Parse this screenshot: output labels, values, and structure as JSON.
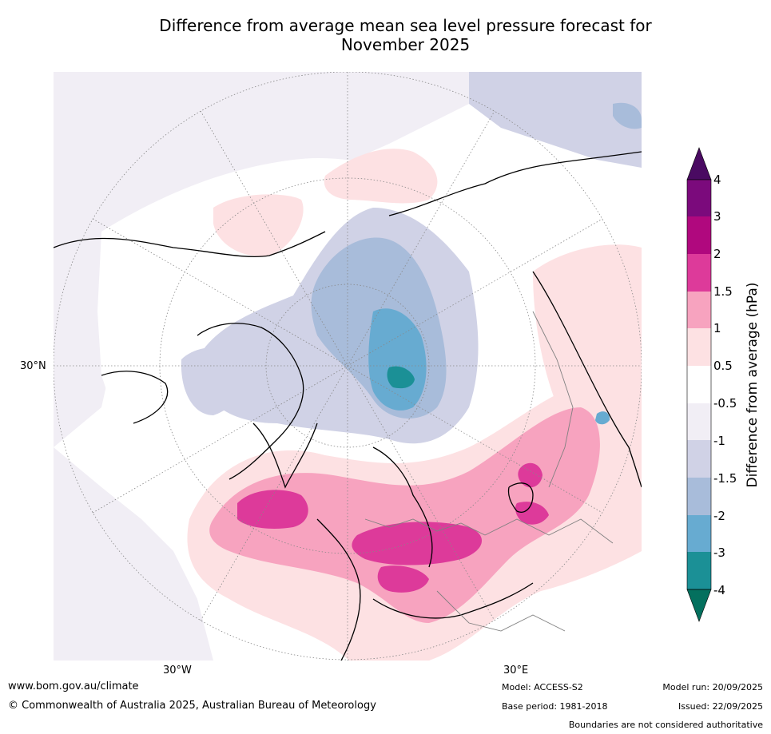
{
  "title_line1": "Difference from average mean sea level pressure forecast for",
  "title_line2": "November 2025",
  "map": {
    "lat_label": "30°N",
    "lon_label_west": "30°W",
    "lon_label_east": "30°E"
  },
  "colorbar": {
    "title": "Difference from average (hPa)",
    "ticks": [
      "4",
      "3",
      "2",
      "1.5",
      "1",
      "0.5",
      "-0.5",
      "-1",
      "-1.5",
      "-2",
      "-3",
      "-4"
    ],
    "colors": {
      "over": "#4a0a62",
      "gt3": "#7b0a7c",
      "2to3": "#b0087e",
      "1.5to2": "#dd3a9a",
      "1to1.5": "#f7a3bf",
      "0.5to1": "#fde1e3",
      "neutral": "#ffffff",
      "m1tom0.5": "#f1eef5",
      "m1.5tom1": "#d0d2e6",
      "m2tom1.5": "#a8bcda",
      "m3tom2": "#67abd1",
      "m4tom3": "#1b9096",
      "under": "#04705e"
    }
  },
  "footer": {
    "website": "www.bom.gov.au/climate",
    "copyright": "© Commonwealth of Australia 2025, Australian Bureau of Meteorology",
    "model": "Model: ACCESS-S2",
    "base_period": "Base period: 1981-2018",
    "model_run": "Model run: 20/09/2025",
    "issued": "Issued: 22/09/2025",
    "disclaimer": "Boundaries are not considered authoritative"
  }
}
